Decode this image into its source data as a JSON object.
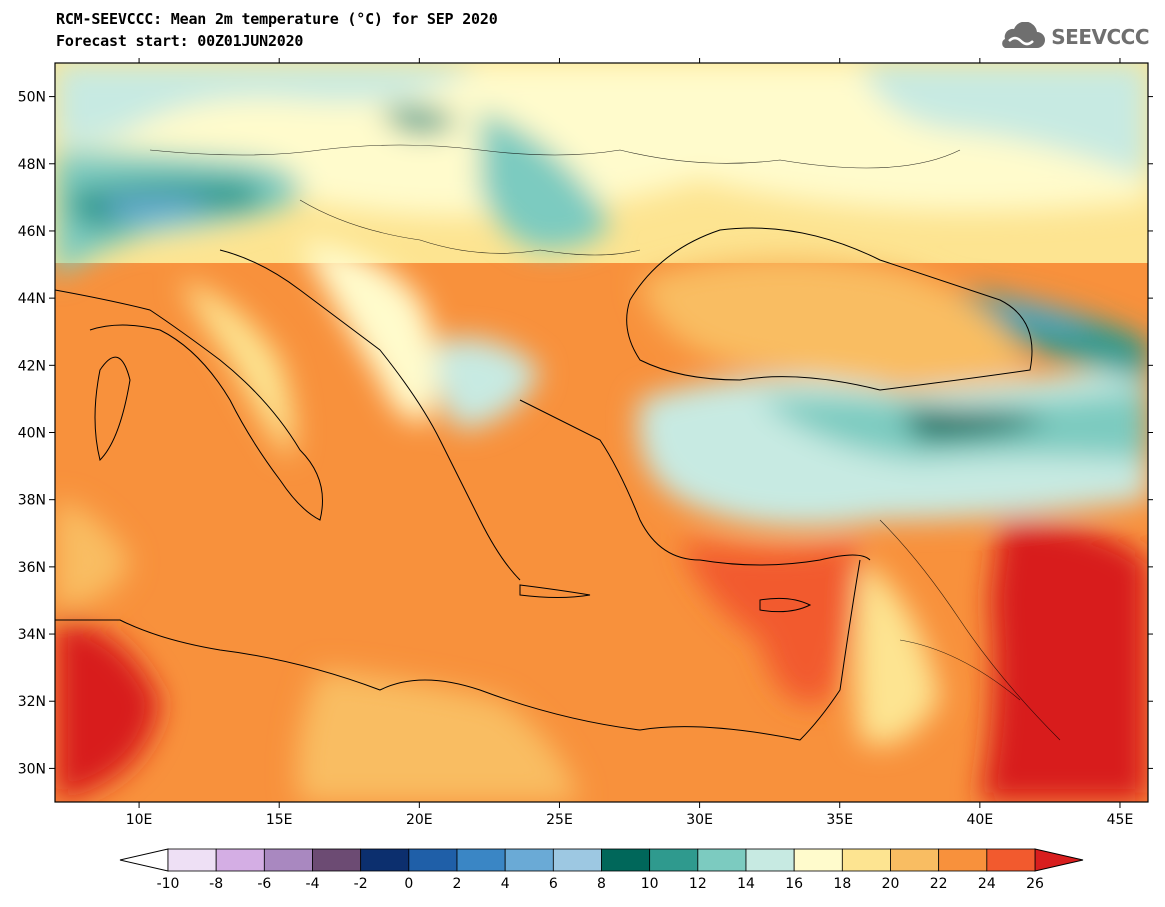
{
  "header": {
    "title_line1": "RCM-SEEVCCC: Mean 2m temperature (°C) for SEP 2020",
    "title_line2": "Forecast start: 00Z01JUN2020",
    "logo_text": "SEEVCCC"
  },
  "map": {
    "projection": "lat-lon",
    "lon_range": [
      7,
      46
    ],
    "lat_range": [
      29,
      51
    ],
    "lat_ticks": [
      {
        "value": 50,
        "label": "50N"
      },
      {
        "value": 48,
        "label": "48N"
      },
      {
        "value": 46,
        "label": "46N"
      },
      {
        "value": 44,
        "label": "44N"
      },
      {
        "value": 42,
        "label": "42N"
      },
      {
        "value": 40,
        "label": "40N"
      },
      {
        "value": 38,
        "label": "38N"
      },
      {
        "value": 36,
        "label": "36N"
      },
      {
        "value": 34,
        "label": "34N"
      },
      {
        "value": 32,
        "label": "32N"
      },
      {
        "value": 30,
        "label": "30N"
      }
    ],
    "lon_ticks": [
      {
        "value": 10,
        "label": "10E"
      },
      {
        "value": 15,
        "label": "15E"
      },
      {
        "value": 20,
        "label": "20E"
      },
      {
        "value": 25,
        "label": "25E"
      },
      {
        "value": 30,
        "label": "30E"
      },
      {
        "value": 35,
        "label": "35E"
      },
      {
        "value": 40,
        "label": "40E"
      },
      {
        "value": 45,
        "label": "45E"
      }
    ]
  },
  "colorbar": {
    "labels": [
      "-10",
      "-8",
      "-6",
      "-4",
      "-2",
      "0",
      "2",
      "4",
      "6",
      "8",
      "10",
      "12",
      "14",
      "16",
      "18",
      "20",
      "22",
      "24",
      "26"
    ],
    "under_color": "#ffffff",
    "over_color": "#d81e1e",
    "colors": [
      "#eee0f5",
      "#d4aee4",
      "#a988c0",
      "#6c4b73",
      "#0c2f6e",
      "#1f5fa8",
      "#3a86c5",
      "#6aaad6",
      "#9dc8e2",
      "#00675a",
      "#2f9a8e",
      "#7ccbc0",
      "#c7eae2",
      "#fffbcc",
      "#fde491",
      "#f9bd62",
      "#f8913c",
      "#f25a2e"
    ]
  }
}
